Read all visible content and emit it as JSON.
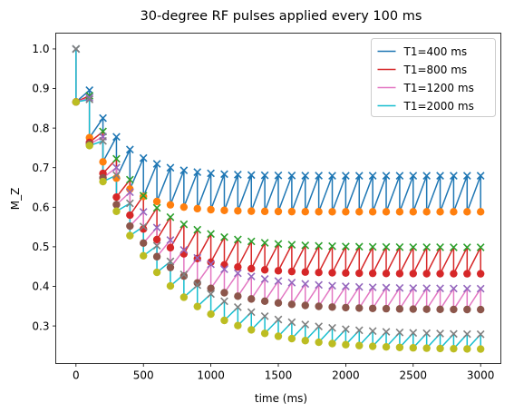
{
  "chart_data": {
    "type": "line",
    "title": "30-degree RF pulses applied every 100 ms",
    "xlabel": "time (ms)",
    "ylabel": "M_Z",
    "xlim": [
      -150,
      3150
    ],
    "ylim": [
      0.205,
      1.04
    ],
    "xticks": [
      0,
      500,
      1000,
      1500,
      2000,
      2500,
      3000
    ],
    "yticks": [
      0.3,
      0.4,
      0.5,
      0.6,
      0.7,
      0.8,
      0.9,
      1.0
    ],
    "xtick_labels": [
      "0",
      "500",
      "1000",
      "1500",
      "2000",
      "2500",
      "3000"
    ],
    "ytick_labels": [
      "0.3",
      "0.4",
      "0.5",
      "0.6",
      "0.7",
      "0.8",
      "0.9",
      "1.0"
    ],
    "grid": false,
    "legend_position": "top-right",
    "flip_angle_deg": 30,
    "tr_ms": 100,
    "num_pulses": 31,
    "series": [
      {
        "name": "T1=400 ms",
        "t1_ms": 400,
        "line_color": "#1f77b4",
        "pre_marker_color": "#1f77b4",
        "post_marker_color": "#ff7f0e"
      },
      {
        "name": "T1=800 ms",
        "t1_ms": 800,
        "line_color": "#d62728",
        "pre_marker_color": "#2ca02c",
        "post_marker_color": "#d62728"
      },
      {
        "name": "T1=1200 ms",
        "t1_ms": 1200,
        "line_color": "#e377c2",
        "pre_marker_color": "#9467bd",
        "post_marker_color": "#8c564b"
      },
      {
        "name": "T1=2000 ms",
        "t1_ms": 2000,
        "line_color": "#17becf",
        "pre_marker_color": "#7f7f7f",
        "post_marker_color": "#bcbd22"
      }
    ],
    "colors": {
      "blue": "#1f77b4",
      "orange": "#ff7f0e",
      "green": "#2ca02c",
      "red": "#d62728",
      "purple": "#9467bd",
      "brown": "#8c564b",
      "pink": "#e377c2",
      "gray": "#7f7f7f",
      "olive": "#bcbd22",
      "cyan": "#17becf"
    },
    "marker_types": {
      "pre_pulse": "x",
      "post_pulse": "circle"
    }
  }
}
